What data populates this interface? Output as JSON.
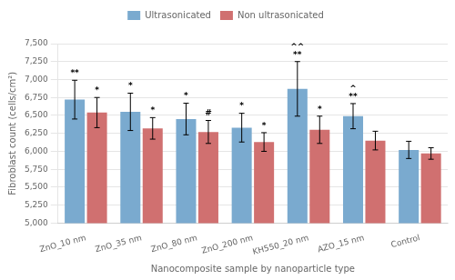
{
  "chart_data": {
    "type": "bar",
    "xlabel": "Nanocomposite sample by nanoparticle type",
    "ylabel": "Fibroblast count (cells/cm²)",
    "categories": [
      "ZnO_10 nm",
      "ZnO_35 nm",
      "ZnO_80 nm",
      "ZnO_200 nm",
      "KH550_20 nm",
      "AZO_15 nm",
      "Control"
    ],
    "series": [
      {
        "name": "Ultrasonicated",
        "color": "#7aaacf",
        "values": [
          6720,
          6550,
          6450,
          6330,
          6870,
          6490,
          6020
        ],
        "errors": [
          270,
          260,
          220,
          200,
          380,
          175,
          120
        ],
        "annotations": [
          [
            "**"
          ],
          [
            "*"
          ],
          [
            "*"
          ],
          [
            "*"
          ],
          [
            "^^",
            "**"
          ],
          [
            "^",
            "**"
          ],
          []
        ]
      },
      {
        "name": "Non ultrasonicated",
        "color": "#d07070",
        "values": [
          6540,
          6320,
          6270,
          6130,
          6300,
          6150,
          5970
        ],
        "errors": [
          210,
          150,
          160,
          130,
          190,
          130,
          80
        ],
        "annotations": [
          [
            "*"
          ],
          [
            "*"
          ],
          [
            "#"
          ],
          [
            "*"
          ],
          [
            "*"
          ],
          [],
          []
        ]
      }
    ],
    "ylim": [
      5000,
      7500
    ],
    "yticks": [
      {
        "value": 5000,
        "label": "5,000"
      },
      {
        "value": 5250,
        "label": "5,250"
      },
      {
        "value": 5500,
        "label": "5,500"
      },
      {
        "value": 5750,
        "label": "5,750"
      },
      {
        "value": 6000,
        "label": "6,000"
      },
      {
        "value": 6250,
        "label": "6,250"
      },
      {
        "value": 6500,
        "label": "6,500"
      },
      {
        "value": 6750,
        "label": "6,750"
      },
      {
        "value": 7000,
        "label": "7,000"
      },
      {
        "value": 7250,
        "label": "7,250"
      },
      {
        "value": 7500,
        "label": "7,500"
      }
    ],
    "grid": true,
    "legend": "top"
  }
}
